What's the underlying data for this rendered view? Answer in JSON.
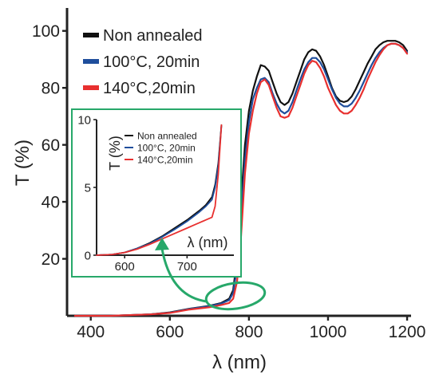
{
  "chart_data": [
    {
      "type": "line",
      "xlabel": "λ (nm)",
      "ylabel": "T (%)",
      "xlim": [
        340,
        1210
      ],
      "ylim": [
        0,
        103
      ],
      "xticks": [
        400,
        600,
        800,
        1000,
        1200
      ],
      "yticks": [
        20,
        40,
        60,
        80,
        100
      ],
      "tick_labels_x": [
        "400",
        "600",
        "800",
        "1000",
        "1200"
      ],
      "tick_labels_y": [
        "20",
        "40",
        "60",
        "80",
        "100"
      ],
      "legend_position": "top-left",
      "grid": false,
      "series": [
        {
          "name": "Non annealed",
          "color": "#111111",
          "x": [
            360,
            450,
            550,
            600,
            650,
            700,
            730,
            750,
            760,
            770,
            780,
            790,
            800,
            810,
            820,
            830,
            840,
            850,
            860,
            870,
            880,
            890,
            900,
            910,
            920,
            930,
            940,
            950,
            960,
            970,
            980,
            990,
            1000,
            1010,
            1020,
            1030,
            1040,
            1050,
            1060,
            1070,
            1080,
            1090,
            1100,
            1110,
            1120,
            1130,
            1140,
            1150,
            1160,
            1170,
            1180,
            1190,
            1200
          ],
          "y": [
            0,
            0,
            0.5,
            1.2,
            2.5,
            3.5,
            4.5,
            6,
            9,
            20,
            40,
            60,
            72,
            79,
            84,
            88,
            87.5,
            86,
            82,
            78,
            75,
            74,
            75,
            78,
            82,
            86,
            90,
            92.5,
            93.5,
            93,
            91,
            88,
            84,
            80,
            77,
            75.5,
            75,
            75.5,
            77,
            79.5,
            82.5,
            85.5,
            88.5,
            91,
            93.5,
            95,
            96,
            96.5,
            96.5,
            96.5,
            96,
            95,
            93
          ]
        },
        {
          "name": "100°C, 20min",
          "color": "#1f4e9c",
          "x": [
            360,
            450,
            550,
            600,
            650,
            700,
            730,
            750,
            760,
            770,
            780,
            790,
            800,
            810,
            820,
            830,
            840,
            850,
            860,
            870,
            880,
            890,
            900,
            910,
            920,
            930,
            940,
            950,
            960,
            970,
            980,
            990,
            1000,
            1010,
            1020,
            1030,
            1040,
            1050,
            1060,
            1070,
            1080,
            1090,
            1100,
            1110,
            1120,
            1130,
            1140,
            1150,
            1160,
            1170,
            1180,
            1190,
            1200
          ],
          "y": [
            0,
            0,
            0.5,
            1.1,
            2.4,
            3.4,
            4.3,
            5.5,
            8,
            17,
            35,
            55,
            68,
            76,
            80,
            83,
            83.5,
            82,
            78,
            74.5,
            72,
            71,
            72,
            75,
            79,
            83,
            86.5,
            89,
            90.5,
            90.5,
            89,
            86.5,
            83,
            79.5,
            76.5,
            74.5,
            73.5,
            73.5,
            74.5,
            76.5,
            79,
            82,
            85,
            88,
            90.5,
            92.5,
            94,
            95,
            95.5,
            95.5,
            95,
            94,
            92.5
          ]
        },
        {
          "name": "140°C,20min",
          "color": "#e8302f",
          "x": [
            360,
            450,
            550,
            600,
            650,
            700,
            730,
            750,
            760,
            770,
            780,
            790,
            800,
            810,
            820,
            830,
            840,
            850,
            860,
            870,
            880,
            890,
            900,
            910,
            920,
            930,
            940,
            950,
            960,
            970,
            980,
            990,
            1000,
            1010,
            1020,
            1030,
            1040,
            1050,
            1060,
            1070,
            1080,
            1090,
            1100,
            1110,
            1120,
            1130,
            1140,
            1150,
            1160,
            1170,
            1180,
            1190,
            1200
          ],
          "y": [
            0,
            0,
            0.5,
            1.0,
            2.2,
            3.0,
            3.8,
            4.5,
            6,
            12,
            28,
            50,
            64,
            72,
            78,
            82,
            83,
            81,
            77,
            73,
            70,
            69.5,
            70,
            73,
            77,
            81,
            85,
            88,
            89.5,
            89,
            87,
            84,
            80,
            77,
            74,
            72,
            71,
            71,
            72,
            74,
            76.5,
            79.5,
            83,
            86,
            89,
            91.5,
            93.5,
            95,
            95.5,
            95.5,
            95,
            94,
            92
          ]
        }
      ]
    },
    {
      "type": "line",
      "xlabel": "λ (nm)",
      "ylabel": "T (%)",
      "xlim": [
        555,
        775
      ],
      "ylim": [
        0,
        10
      ],
      "xticks": [
        600,
        700
      ],
      "yticks": [
        0,
        5,
        10
      ],
      "tick_labels_x": [
        "600",
        "700"
      ],
      "tick_labels_y": [
        "0",
        "5",
        "10"
      ],
      "legend_position": "top-right",
      "grid": false,
      "series": [
        {
          "name": "Non annealed",
          "color": "#111111",
          "x": [
            555,
            580,
            600,
            620,
            640,
            660,
            680,
            700,
            720,
            730,
            740,
            745,
            750,
            755
          ],
          "y": [
            0,
            0.05,
            0.2,
            0.5,
            0.9,
            1.4,
            2.0,
            2.6,
            3.3,
            3.7,
            4.3,
            5.2,
            6.8,
            9.6
          ]
        },
        {
          "name": "100°C, 20min",
          "color": "#1f4e9c",
          "x": [
            555,
            580,
            600,
            620,
            640,
            660,
            680,
            700,
            720,
            730,
            740,
            745,
            750,
            755
          ],
          "y": [
            0,
            0.05,
            0.2,
            0.5,
            0.85,
            1.35,
            1.9,
            2.5,
            3.2,
            3.6,
            4.1,
            5.0,
            6.6,
            9.5
          ]
        },
        {
          "name": "140°C,20min",
          "color": "#e8302f",
          "x": [
            555,
            580,
            600,
            620,
            640,
            660,
            680,
            700,
            710,
            720,
            730,
            740,
            745,
            750,
            755
          ],
          "y": [
            0,
            0.05,
            0.2,
            0.45,
            0.8,
            1.2,
            1.6,
            2.0,
            2.2,
            2.4,
            2.6,
            2.8,
            3.6,
            6.0,
            9.6
          ]
        }
      ]
    }
  ]
}
